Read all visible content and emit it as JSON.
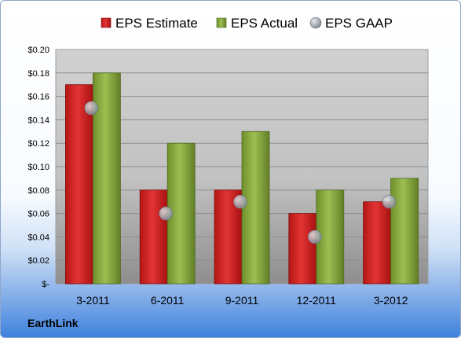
{
  "source_label": "EarthLink",
  "colors": {
    "estimate": "#c81e1e",
    "actual": "#86a83b",
    "gaap": "#9aa3ad"
  },
  "chart_data": {
    "type": "bar",
    "categories": [
      "3-2011",
      "6-2011",
      "9-2011",
      "12-2011",
      "3-2012"
    ],
    "series": [
      {
        "name": "EPS Estimate",
        "type": "bar",
        "values": [
          0.17,
          0.08,
          0.08,
          0.06,
          0.07
        ]
      },
      {
        "name": "EPS Actual",
        "type": "bar",
        "values": [
          0.18,
          0.12,
          0.13,
          0.08,
          0.09
        ]
      },
      {
        "name": "EPS GAAP",
        "type": "scatter",
        "values": [
          0.15,
          0.06,
          0.07,
          0.04,
          0.07
        ]
      }
    ],
    "ylim": [
      0,
      0.2
    ],
    "yticks": [
      0,
      0.02,
      0.04,
      0.06,
      0.08,
      0.1,
      0.12,
      0.14,
      0.16,
      0.18,
      0.2
    ],
    "ytick_labels": [
      "$-",
      "$0.02",
      "$0.04",
      "$0.06",
      "$0.08",
      "$0.10",
      "$0.12",
      "$0.14",
      "$0.16",
      "$0.18",
      "$0.20"
    ],
    "legend_position": "top",
    "grid": true
  }
}
